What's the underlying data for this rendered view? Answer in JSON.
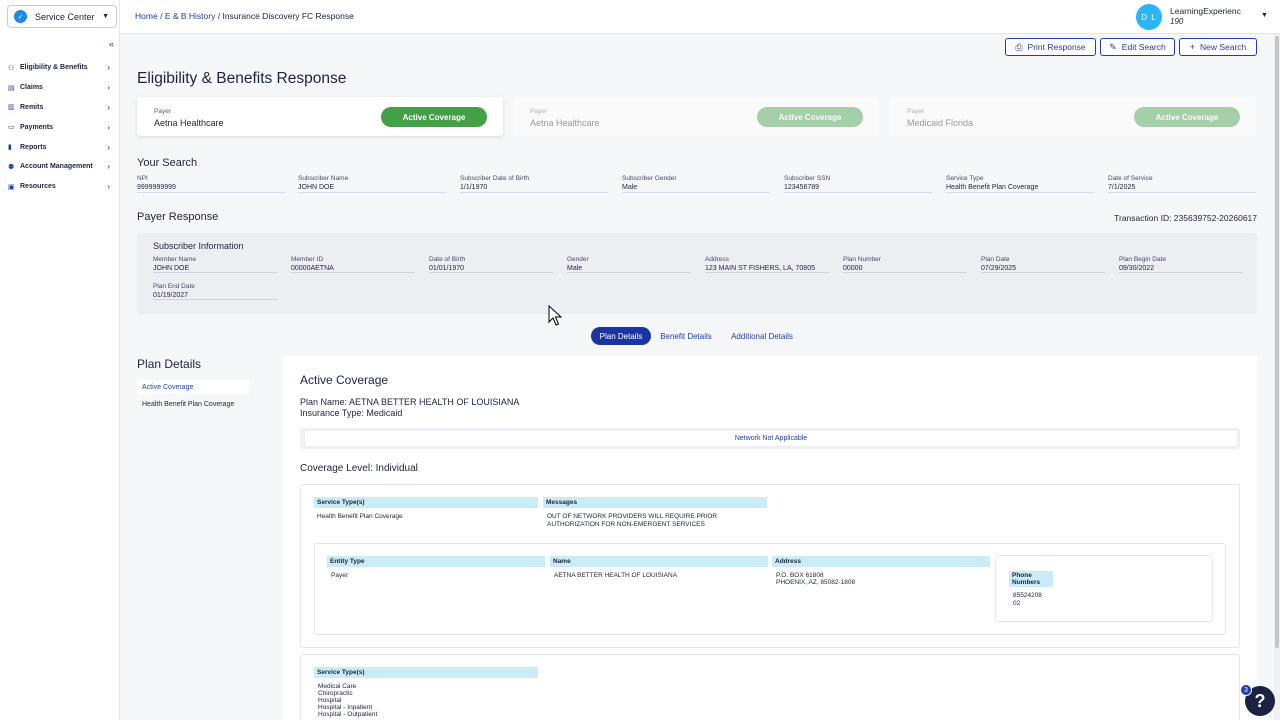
{
  "sidebar": {
    "service_selector": "Service Center",
    "collapse": "«",
    "items": [
      {
        "label": "Eligibility & Benefits",
        "icon": "users-icon"
      },
      {
        "label": "Claims",
        "icon": "clipboard-icon"
      },
      {
        "label": "Remits",
        "icon": "receipt-icon"
      },
      {
        "label": "Payments",
        "icon": "card-icon"
      },
      {
        "label": "Reports",
        "icon": "chart-icon"
      },
      {
        "label": "Account Management",
        "icon": "people-icon"
      },
      {
        "label": "Resources",
        "icon": "book-icon"
      }
    ]
  },
  "header": {
    "breadcrumb": {
      "home": "Home",
      "sep": "/",
      "history": "E & B History",
      "current": "Insurance Discovery FC Response"
    },
    "user": {
      "initials": "D L",
      "name": "LearningExperienc",
      "id": "190"
    },
    "buttons": {
      "print": "Print Response",
      "edit": "Edit Search",
      "new": "New Search"
    }
  },
  "page": {
    "title": "Eligibility & Benefits Response"
  },
  "payer_cards": [
    {
      "label": "Payer",
      "name": "Aetna Healthcare",
      "status": "Active Coverage"
    },
    {
      "label": "Payer",
      "name": "Aetna Healthcare",
      "status": "Active Coverage"
    },
    {
      "label": "Payer",
      "name": "Medicaid Florida",
      "status": "Active Coverage"
    }
  ],
  "your_search": {
    "title": "Your Search",
    "fields": [
      {
        "label": "NPI",
        "value": "9999999999"
      },
      {
        "label": "Subscriber Name",
        "value": "JOHN DOE"
      },
      {
        "label": "Subscriber Date of Birth",
        "value": "1/1/1970"
      },
      {
        "label": "Subscriber Gender",
        "value": "Male"
      },
      {
        "label": "Subscriber SSN",
        "value": "123456789"
      },
      {
        "label": "Service Type",
        "value": "Health Benefit Plan Coverage"
      },
      {
        "label": "Date of Service",
        "value": "7/1/2025"
      }
    ]
  },
  "payer_response": {
    "title": "Payer Response",
    "transaction_id": "Transaction ID: 235639752-20260617",
    "subscriber_title": "Subscriber Information",
    "fields": [
      {
        "label": "Member Name",
        "value": "JOHN DOE"
      },
      {
        "label": "Member ID",
        "value": "00000AETNA"
      },
      {
        "label": "Date of Birth",
        "value": "01/01/1970"
      },
      {
        "label": "Gender",
        "value": "Male"
      },
      {
        "label": "Address",
        "value": "123 MAIN ST FISHERS, LA, 70805"
      },
      {
        "label": "Plan Number",
        "value": "00000"
      },
      {
        "label": "Plan Date",
        "value": "07/29/2025"
      },
      {
        "label": "Plan Begin Date",
        "value": "09/30/2022"
      },
      {
        "label": "Plan End Date",
        "value": "01/19/2027"
      }
    ]
  },
  "tabs": [
    {
      "label": "Plan Details"
    },
    {
      "label": "Benefit Details"
    },
    {
      "label": "Additional Details"
    }
  ],
  "plan_details": {
    "title": "Plan Details",
    "left_items": [
      "Active Coverage",
      "Health Benefit Plan Coverage"
    ],
    "active_coverage_title": "Active Coverage",
    "plan_name": "Plan Name: AETNA BETTER HEALTH OF LOUISIANA",
    "insurance_type": "Insurance Type: Medicaid",
    "network": "Network Not Applicable",
    "coverage_level": "Coverage Level: Individual",
    "table1": {
      "headers": [
        "Service Type(s)",
        "Messages"
      ],
      "service_type": "Health Benefit Plan Coverage",
      "message": "OUT OF NETWORK PROVIDERS WILL REQUIRE PRIOR AUTHORIZATION FOR NON-EMERGENT SERVICES"
    },
    "entity_table": {
      "headers": [
        "Entity Type",
        "Name",
        "Address",
        "Phone Numbers"
      ],
      "entity_type": "Payer",
      "name": "AETNA BETTER HEALTH OF LOUISIANA",
      "address1": "P.O. BOX 61808",
      "address2": "PHOENIX, AZ, 85082-1808",
      "phone1": "85524208",
      "phone2": "02"
    },
    "table2": {
      "header": "Service Type(s)",
      "items": [
        "Medical Care",
        "Chiropractic",
        "Hospital",
        "Hospital - Inpatient",
        "Hospital - Outpatient"
      ]
    }
  },
  "help": {
    "label": "?",
    "badge": "3"
  },
  "colors": {
    "primary": "#1f3fa8",
    "active_green": "#43a047",
    "avatar": "#29b6f6",
    "table_header": "#c9ecf7"
  }
}
